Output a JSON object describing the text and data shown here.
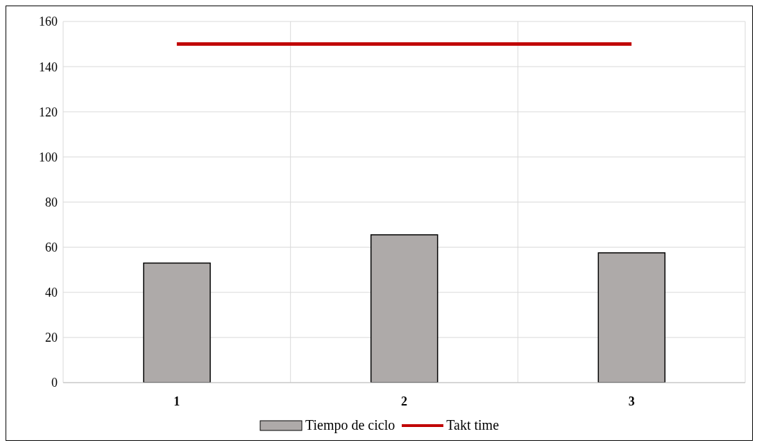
{
  "chart_data": {
    "type": "bar",
    "categories": [
      "1",
      "2",
      "3"
    ],
    "series": [
      {
        "name": "Tiempo de ciclo",
        "color": "#aeaaa9",
        "values": [
          53,
          65.5,
          57.5
        ]
      },
      {
        "name": "Takt time",
        "type": "line",
        "color": "#c00000",
        "values": [
          150,
          150,
          150
        ]
      }
    ],
    "ylim": [
      0,
      160
    ],
    "yticks": [
      0,
      20,
      40,
      60,
      80,
      100,
      120,
      140,
      160
    ],
    "grid": true,
    "legend": "bottom",
    "marker": "none"
  }
}
